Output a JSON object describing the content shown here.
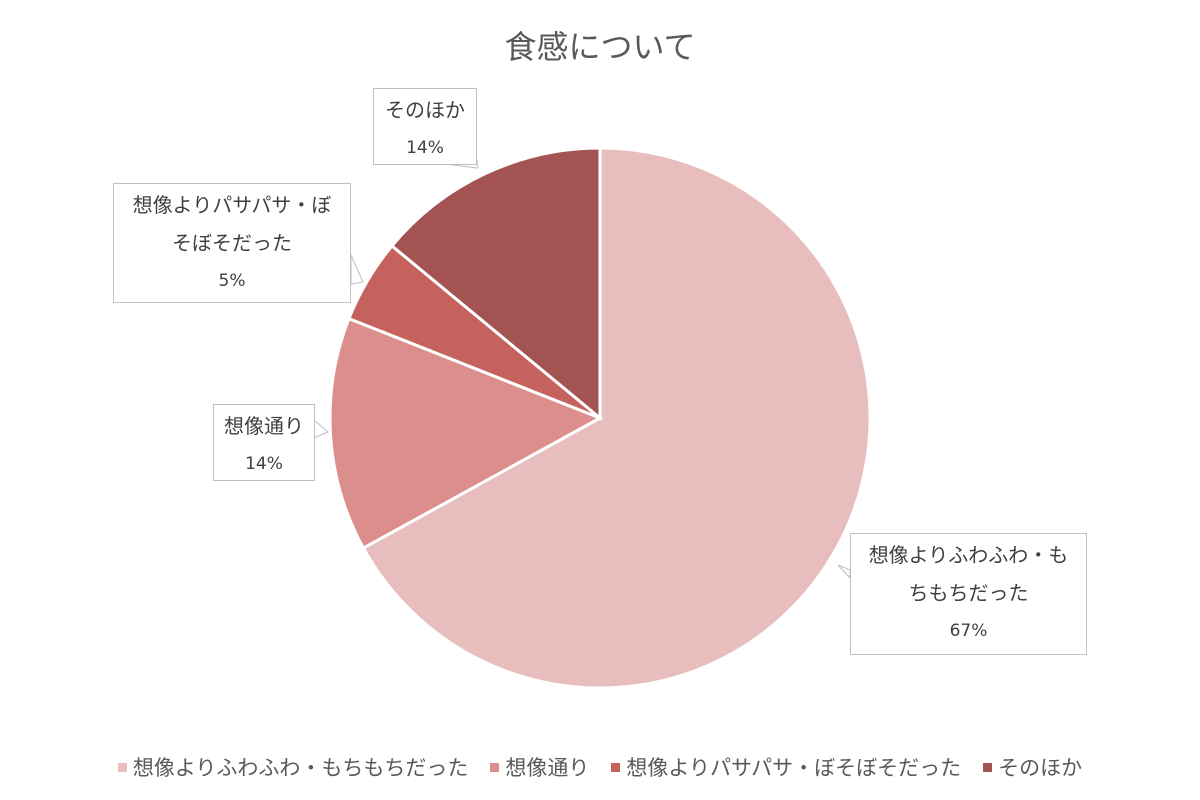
{
  "chart_data": {
    "type": "pie",
    "title": "食感について",
    "start_angle": "top, clockwise",
    "legend_position": "bottom",
    "slices": [
      {
        "label": "想像よりふわふわ・もちもちだった",
        "label_lines": [
          "想像よりふわふわ・も",
          "ちもちだった"
        ],
        "value": 67,
        "value_label": "67%",
        "color": "#E8BDBD"
      },
      {
        "label": "想像通り",
        "label_lines": [
          "想像通り"
        ],
        "value": 14,
        "value_label": "14%",
        "color": "#DB8E8C"
      },
      {
        "label": "想像よりパサパサ・ぼそぼそだった",
        "label_lines": [
          "想像よりパサパサ・ぼ",
          "そぼそだった"
        ],
        "value": 5,
        "value_label": "5%",
        "color": "#C6625D"
      },
      {
        "label": "そのほか",
        "label_lines": [
          "そのほか"
        ],
        "value": 14,
        "value_label": "14%",
        "color": "#A35351"
      }
    ]
  }
}
